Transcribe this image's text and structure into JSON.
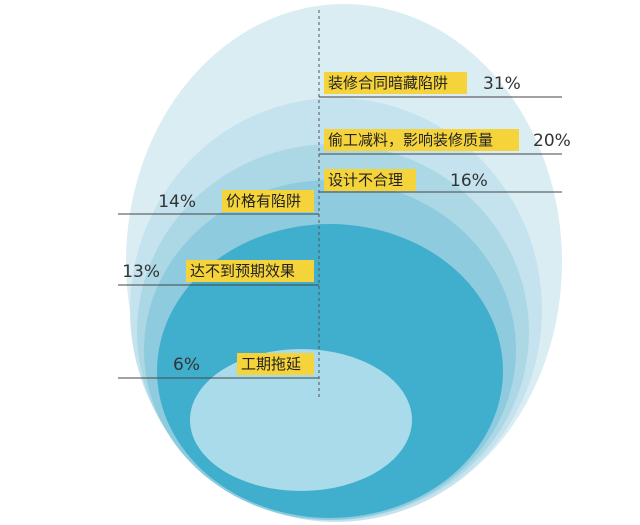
{
  "chart_data": {
    "type": "nested-bubble",
    "title": "",
    "series": [
      {
        "category": "装修合同暗藏陷阱",
        "value": 31,
        "display": "31%"
      },
      {
        "category": "偷工减料，影响装修质量",
        "value": 20,
        "display": "20%"
      },
      {
        "category": "设计不合理",
        "value": 16,
        "display": "16%"
      },
      {
        "category": "价格有陷阱",
        "value": 14,
        "display": "14%"
      },
      {
        "category": "达不到预期效果",
        "value": 13,
        "display": "13%"
      },
      {
        "category": "工期拖延",
        "value": 6,
        "display": "6%"
      }
    ],
    "colors": [
      "#d9edf3",
      "#c4e3ee",
      "#acd8e6",
      "#8fcbde",
      "#40afcd",
      "#a9dbea"
    ],
    "label_highlight": "#f5d43b",
    "legend": "none",
    "grid": false
  }
}
